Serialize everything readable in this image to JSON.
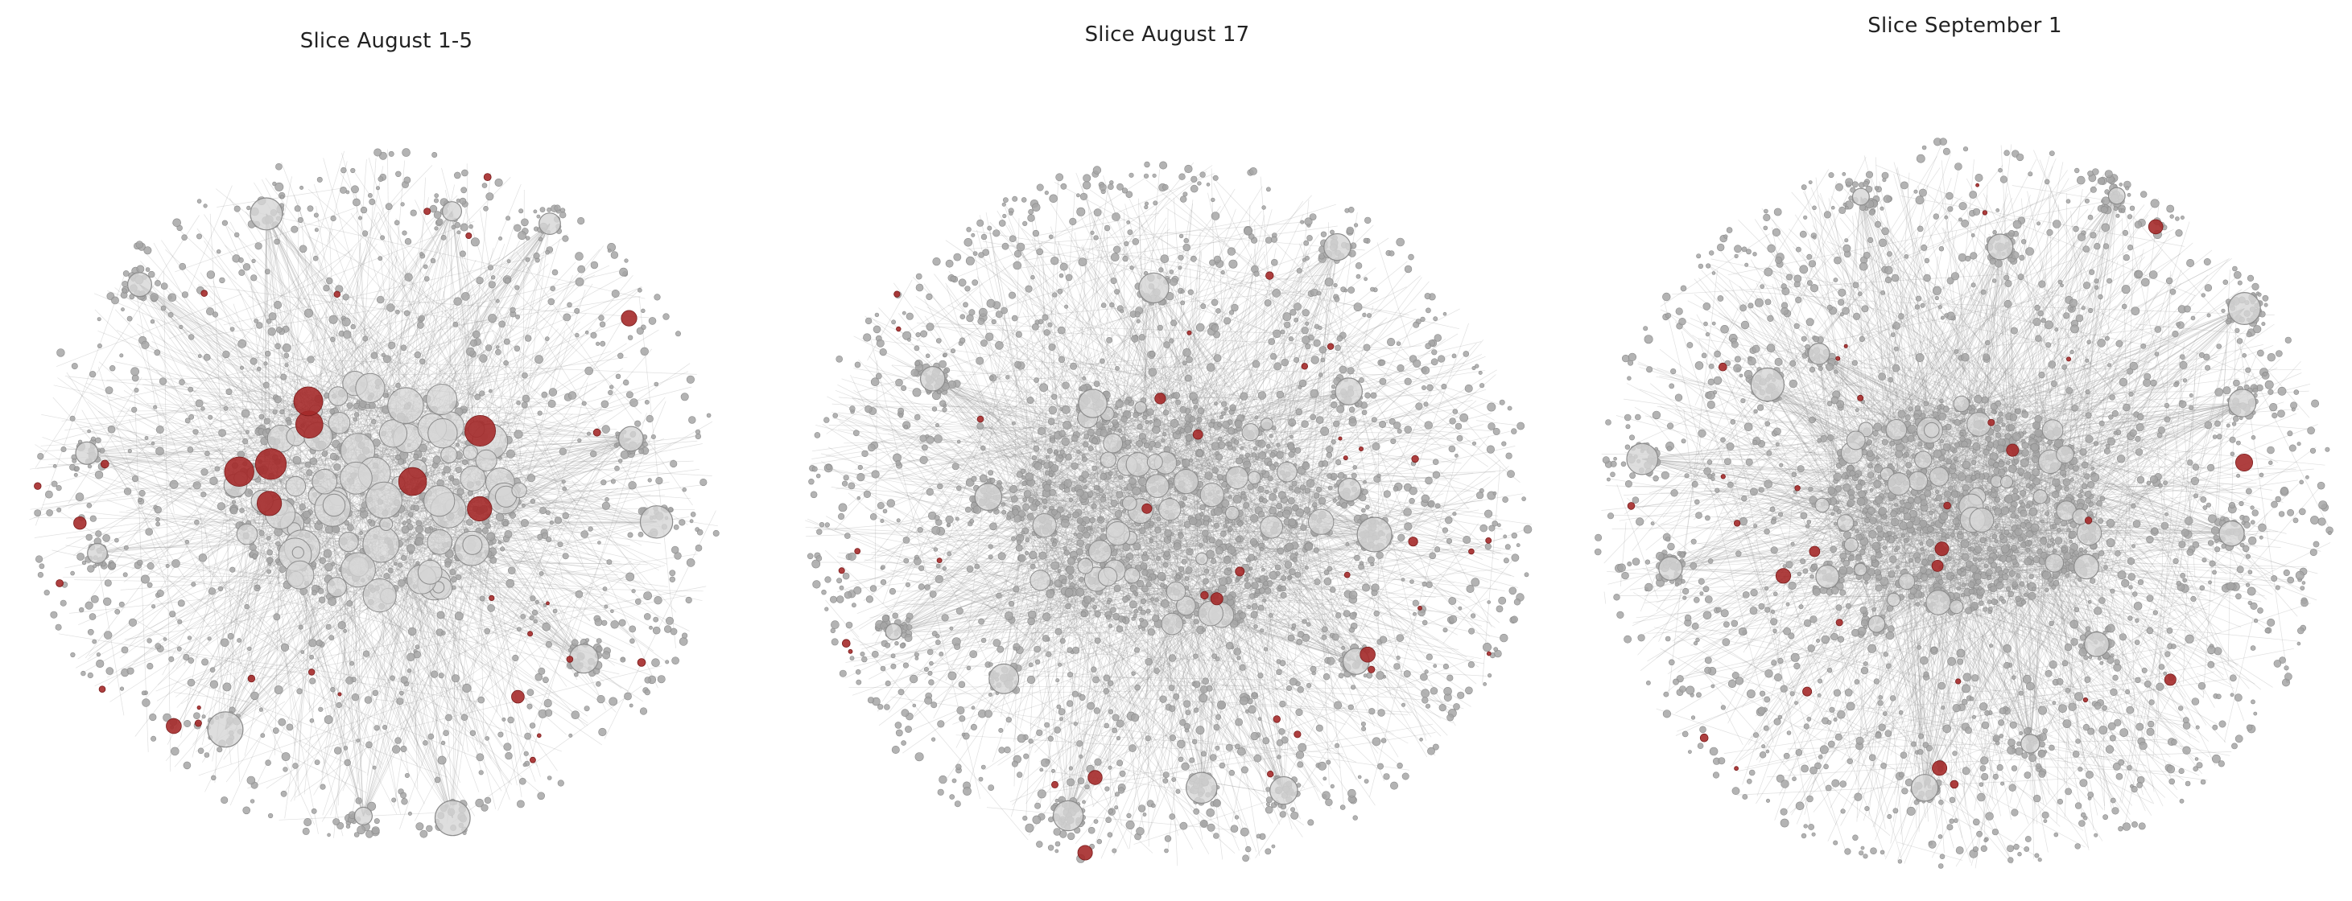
{
  "figure": {
    "background_color": "#ffffff",
    "node_color": "#a6a6a6",
    "node_edge_color": "#8c8c8c",
    "edge_color": "#8e8e8e",
    "highlight_color": "#a52a2a",
    "large_node_fill": "#d6d6d6"
  },
  "panels": [
    {
      "title": "Slice August 1-5"
    },
    {
      "title": "Slice August 17"
    },
    {
      "title": "Slice September 1"
    }
  ]
}
